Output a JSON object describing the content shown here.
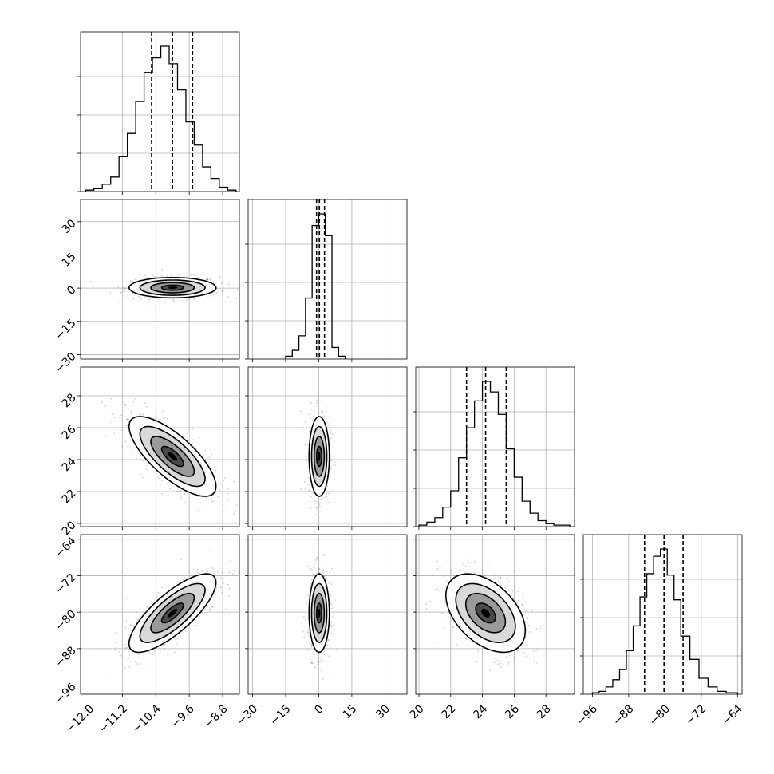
{
  "chart_data": {
    "type": "corner",
    "grid": true,
    "parameters": [
      {
        "index": 0,
        "range": [
          -12.2,
          -8.4
        ],
        "ticks": [
          -12.0,
          -11.2,
          -10.4,
          -9.6,
          -8.8
        ],
        "tick_labels": [
          "−12.0",
          "−11.2",
          "−10.4",
          "−9.6",
          "−8.8"
        ],
        "quantiles": [
          -10.5,
          -10.0,
          -9.52
        ]
      },
      {
        "index": 1,
        "range": [
          -32,
          40
        ],
        "ticks": [
          -30,
          -15,
          0,
          15,
          30
        ],
        "tick_labels": [
          "−30",
          "−15",
          "0",
          "15",
          "30"
        ],
        "quantiles": [
          -1.0,
          0.3,
          2.6
        ]
      },
      {
        "index": 2,
        "range": [
          19.8,
          29.8
        ],
        "ticks": [
          20,
          22,
          24,
          26,
          28
        ],
        "tick_labels": [
          "20",
          "22",
          "24",
          "26",
          "28"
        ],
        "quantiles": [
          23.0,
          24.2,
          25.5
        ]
      },
      {
        "index": 3,
        "range": [
          -98,
          -63
        ],
        "ticks": [
          -96,
          -88,
          -80,
          -72,
          -64
        ],
        "tick_labels": [
          "−96",
          "−88",
          "−80",
          "−72",
          "−64"
        ],
        "quantiles": [
          -84.5,
          -80.2,
          -76.0
        ]
      }
    ],
    "histograms": [
      {
        "param": 0,
        "bins": [
          -12.08,
          -11.88,
          -11.68,
          -11.48,
          -11.28,
          -11.08,
          -10.88,
          -10.68,
          -10.48,
          -10.28,
          -10.08,
          -9.88,
          -9.68,
          -9.48,
          -9.28,
          -9.08,
          -8.88,
          -8.68,
          -8.48
        ],
        "counts": [
          0.01,
          0.02,
          0.05,
          0.1,
          0.24,
          0.4,
          0.62,
          0.82,
          0.92,
          1.0,
          0.88,
          0.7,
          0.48,
          0.32,
          0.17,
          0.09,
          0.03,
          0.01
        ]
      },
      {
        "param": 1,
        "bins": [
          -15,
          -12,
          -9,
          -6,
          -3,
          0,
          3,
          6,
          9,
          12
        ],
        "counts": [
          0.02,
          0.06,
          0.16,
          0.42,
          0.92,
          1.0,
          0.85,
          0.08,
          0.02
        ]
      },
      {
        "param": 2,
        "bins": [
          20.0,
          20.5,
          21.0,
          21.5,
          22.0,
          22.5,
          23.0,
          23.5,
          24.0,
          24.5,
          25.0,
          25.5,
          26.0,
          26.5,
          27.0,
          27.5,
          28.0,
          28.5,
          29.0,
          29.5
        ],
        "counts": [
          0.01,
          0.03,
          0.06,
          0.13,
          0.24,
          0.46,
          0.66,
          0.84,
          0.97,
          0.9,
          0.75,
          0.52,
          0.33,
          0.17,
          0.09,
          0.04,
          0.02,
          0.01,
          0.01
        ]
      },
      {
        "param": 3,
        "bins": [
          -96,
          -94.5,
          -93,
          -91.5,
          -90,
          -88.5,
          -87,
          -85.5,
          -84,
          -82.5,
          -81,
          -79.5,
          -78,
          -76.5,
          -74.5,
          -72.5,
          -70.5,
          -68.5,
          -66.5,
          -64
        ],
        "counts": [
          0.01,
          0.02,
          0.05,
          0.1,
          0.17,
          0.3,
          0.47,
          0.67,
          0.83,
          0.95,
          1.0,
          0.82,
          0.65,
          0.4,
          0.24,
          0.11,
          0.05,
          0.02,
          0.01
        ]
      }
    ],
    "pairs": [
      {
        "x": 0,
        "y": 1,
        "mean": [
          -10.0,
          0.2
        ],
        "sd": [
          0.52,
          2.3
        ],
        "rho": 0.0
      },
      {
        "x": 0,
        "y": 2,
        "mean": [
          -10.0,
          24.2
        ],
        "sd": [
          0.52,
          1.25
        ],
        "rho": -0.75
      },
      {
        "x": 1,
        "y": 2,
        "mean": [
          0.2,
          24.2
        ],
        "sd": [
          2.3,
          1.25
        ],
        "rho": 0.0
      },
      {
        "x": 0,
        "y": 3,
        "mean": [
          -10.0,
          -80.2
        ],
        "sd": [
          0.52,
          4.3
        ],
        "rho": 0.78
      },
      {
        "x": 1,
        "y": 3,
        "mean": [
          0.2,
          -80.2
        ],
        "sd": [
          2.3,
          4.3
        ],
        "rho": 0.0
      },
      {
        "x": 2,
        "y": 3,
        "mean": [
          24.2,
          -80.2
        ],
        "sd": [
          1.25,
          4.3
        ],
        "rho": -0.45
      }
    ]
  }
}
